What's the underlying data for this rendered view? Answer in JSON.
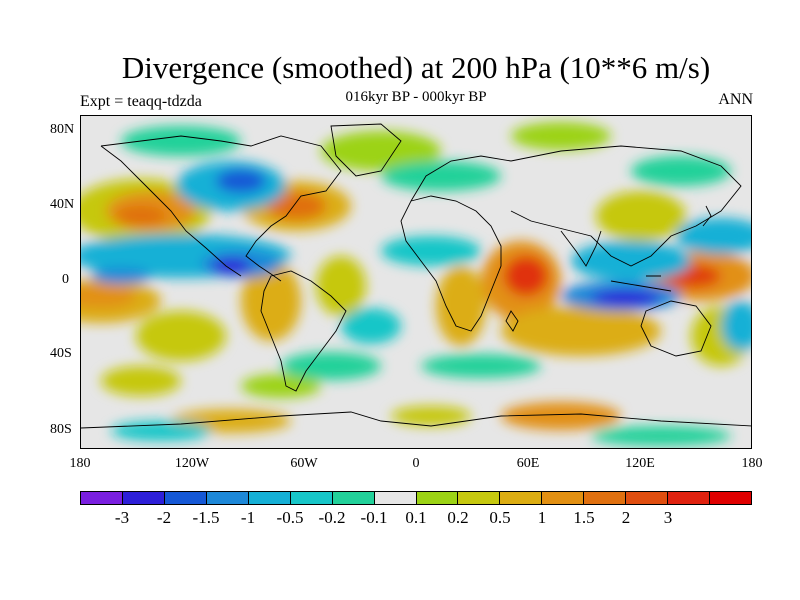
{
  "title": "Divergence (smoothed) at 200 hPa (10**6 m/s)",
  "subtitle": "016kyr BP - 000kyr BP",
  "left_label": "Expt = teaqq-tdzda",
  "right_label": "ANN",
  "lat_labels": [
    "80N",
    "40N",
    "0",
    "40S",
    "80S"
  ],
  "lon_labels": [
    "180",
    "120W",
    "60W",
    "0",
    "60E",
    "120E",
    "180"
  ],
  "colorbar": {
    "colors": [
      "#7a1fe0",
      "#2d1fd8",
      "#1558d6",
      "#1d88d8",
      "#15b0d6",
      "#17c6c8",
      "#22d19a",
      "#e6e6e6",
      "#9cd315",
      "#c6c80f",
      "#dcad12",
      "#e29012",
      "#e0700f",
      "#e04e0f",
      "#e0220f",
      "#e00000"
    ],
    "labels": [
      "-3",
      "-2",
      "-1.5",
      "-1",
      "-0.5",
      "-0.2",
      "-0.1",
      "0.1",
      "0.2",
      "0.5",
      "1",
      "1.5",
      "2",
      "3"
    ]
  }
}
